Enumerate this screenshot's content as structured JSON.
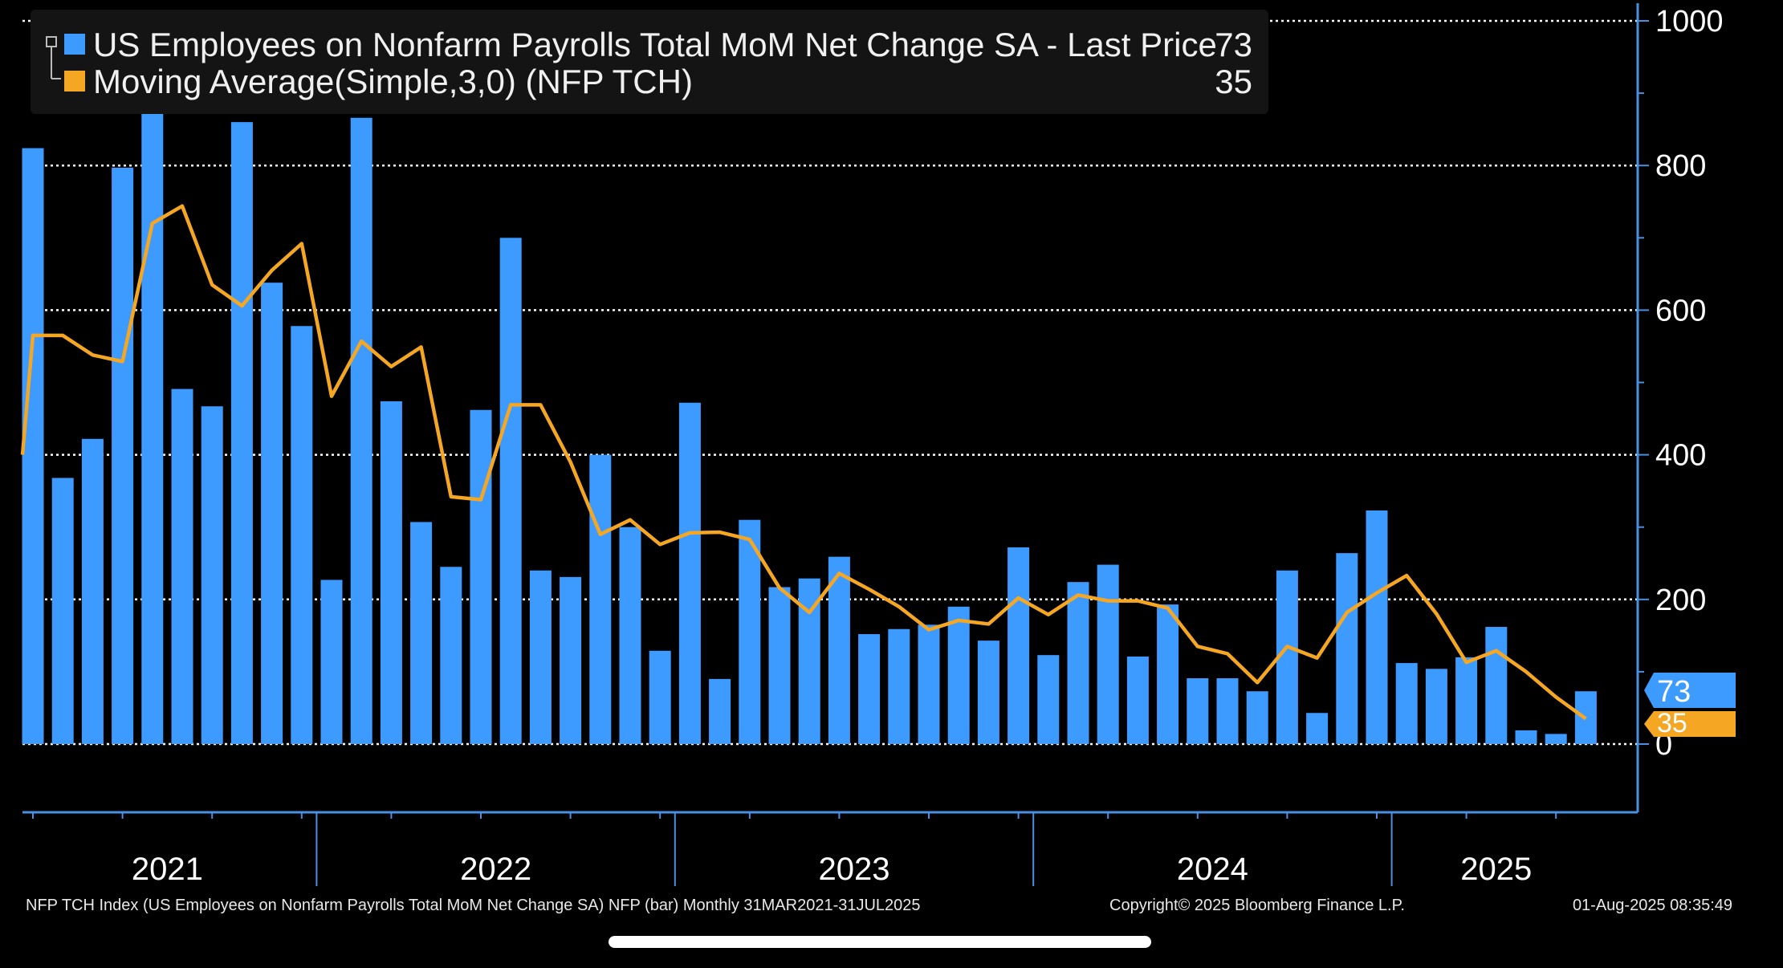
{
  "legend": {
    "series1_label": "US Employees on Nonfarm Payrolls Total MoM Net Change SA - Last Price",
    "series1_value": "73",
    "series2_label": "Moving Average(Simple,3,0) (NFP TCH)",
    "series2_value": "35"
  },
  "last_labels": {
    "bar": "73",
    "ma": "35"
  },
  "footer": {
    "left": "NFP TCH Index (US Employees on Nonfarm Payrolls Total MoM Net Change SA) NFP (bar)  Monthly 31MAR2021-31JUL2025",
    "center": "Copyright© 2025 Bloomberg Finance L.P.",
    "right": "01-Aug-2025 08:35:49"
  },
  "colors": {
    "bar": "#3d9bff",
    "moving_average": "#f5a623",
    "background": "#000000",
    "axis": "#4a90e2"
  },
  "chart_data": {
    "type": "bar",
    "title": "",
    "xlabel": "",
    "ylabel": "",
    "ylim": [
      -90,
      1000
    ],
    "yticks": [
      0,
      200,
      400,
      600,
      800,
      1000
    ],
    "grid": true,
    "legend_position": "top-left",
    "x_year_labels": [
      "2021",
      "2022",
      "2023",
      "2024",
      "2025"
    ],
    "x": [
      "2021-03",
      "2021-04",
      "2021-05",
      "2021-06",
      "2021-07",
      "2021-08",
      "2021-09",
      "2021-10",
      "2021-11",
      "2021-12",
      "2022-01",
      "2022-02",
      "2022-03",
      "2022-04",
      "2022-05",
      "2022-06",
      "2022-07",
      "2022-08",
      "2022-09",
      "2022-10",
      "2022-11",
      "2022-12",
      "2023-01",
      "2023-02",
      "2023-03",
      "2023-04",
      "2023-05",
      "2023-06",
      "2023-07",
      "2023-08",
      "2023-09",
      "2023-10",
      "2023-11",
      "2023-12",
      "2024-01",
      "2024-02",
      "2024-03",
      "2024-04",
      "2024-05",
      "2024-06",
      "2024-07",
      "2024-08",
      "2024-09",
      "2024-10",
      "2024-11",
      "2024-12",
      "2025-01",
      "2025-02",
      "2025-03",
      "2025-04",
      "2025-05",
      "2025-06",
      "2025-07"
    ],
    "series": [
      {
        "name": "US Employees on Nonfarm Payrolls Total MoM Net Change SA",
        "type": "bar",
        "values": [
          824,
          368,
          422,
          797,
          946,
          491,
          467,
          860,
          638,
          578,
          227,
          866,
          474,
          307,
          245,
          462,
          700,
          240,
          231,
          400,
          300,
          129,
          472,
          90,
          310,
          217,
          229,
          259,
          152,
          159,
          165,
          190,
          143,
          272,
          123,
          224,
          248,
          121,
          193,
          91,
          91,
          73,
          240,
          43,
          264,
          323,
          112,
          104,
          120,
          162,
          19,
          14,
          73
        ]
      },
      {
        "name": "Moving Average(Simple,3,0) (NFP TCH)",
        "type": "line",
        "values": [
          565,
          565,
          538,
          529,
          720,
          744,
          635,
          606,
          655,
          692,
          481,
          557,
          522,
          549,
          342,
          338,
          469,
          469,
          390,
          290,
          310,
          276,
          292,
          293,
          283,
          216,
          182,
          236,
          214,
          190,
          158,
          171,
          166,
          202,
          179,
          206,
          198,
          198,
          188,
          135,
          125,
          85,
          135,
          119,
          182,
          209,
          233,
          180,
          113,
          129,
          100,
          65,
          35
        ]
      }
    ]
  }
}
